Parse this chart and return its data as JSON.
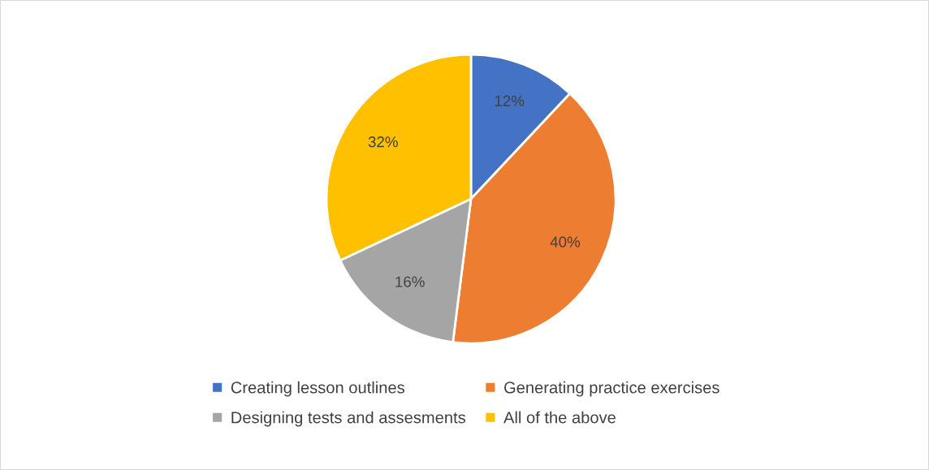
{
  "chart_data": {
    "type": "pie",
    "categories": [
      "Creating lesson outlines",
      "Generating practice exercises",
      "Designing tests and assesments",
      "All of the above"
    ],
    "values": [
      12,
      40,
      16,
      32
    ],
    "colors": [
      "#4472c4",
      "#ed7d31",
      "#a5a5a5",
      "#ffc000"
    ],
    "value_labels": [
      "12%",
      "40%",
      "16%",
      "32%"
    ],
    "legend": "bottom"
  }
}
